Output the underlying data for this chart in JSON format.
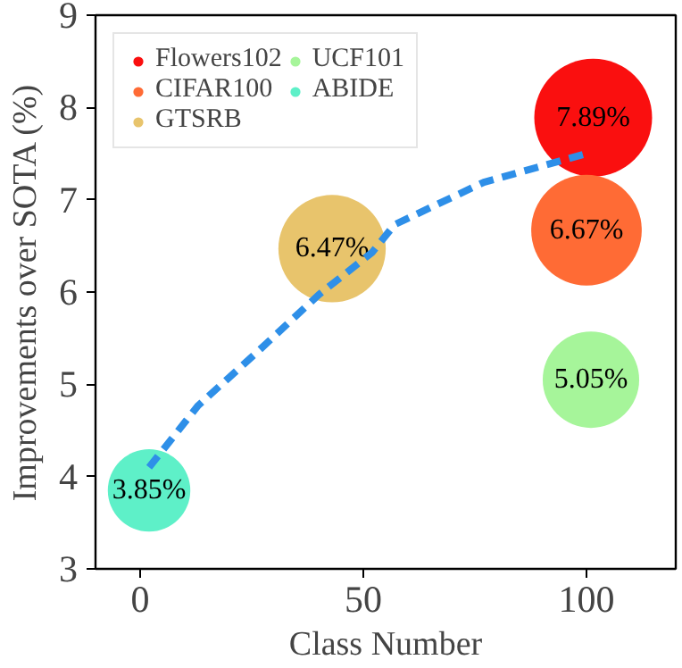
{
  "chart_data": {
    "type": "bubble",
    "xlabel": "Class Number",
    "ylabel": "Improvements over SOTA (%)",
    "xlim": [
      -10,
      120
    ],
    "ylim": [
      3,
      9
    ],
    "xticks": [
      0,
      50,
      100
    ],
    "yticks": [
      3,
      4,
      5,
      6,
      7,
      8,
      9
    ],
    "grid": false,
    "legend": "top left",
    "series": [
      {
        "name": "Flowers102",
        "color": "#fa0f0f",
        "x": [
          101.5
        ],
        "values": [
          7.89
        ],
        "sizes": [
          1
        ],
        "value_labels": [
          "7.89%"
        ]
      },
      {
        "name": "CIFAR100",
        "color": "#ff6b35",
        "x": [
          100
        ],
        "values": [
          6.67
        ],
        "sizes": [
          0.88
        ],
        "value_labels": [
          "6.67%"
        ]
      },
      {
        "name": "GTSRB",
        "color": "#e8c46c",
        "x": [
          43
        ],
        "values": [
          6.47
        ],
        "sizes": [
          0.83
        ],
        "value_labels": [
          "6.47%"
        ]
      },
      {
        "name": "UCF101",
        "color": "#a6f59a",
        "x": [
          101
        ],
        "values": [
          5.05
        ],
        "sizes": [
          0.67
        ],
        "value_labels": [
          "5.05%"
        ]
      },
      {
        "name": "ABIDE",
        "color": "#5ef0c8",
        "x": [
          2
        ],
        "values": [
          3.85
        ],
        "sizes": [
          0.49
        ],
        "value_labels": [
          "3.85%"
        ]
      },
      {
        "type": "line",
        "color": "#2e8fe8",
        "line_style": "dashed",
        "x": [
          2,
          13,
          26,
          40,
          52,
          57,
          77,
          100
        ],
        "values": [
          4.1,
          4.77,
          5.34,
          5.97,
          6.43,
          6.73,
          7.19,
          7.5
        ]
      }
    ]
  }
}
